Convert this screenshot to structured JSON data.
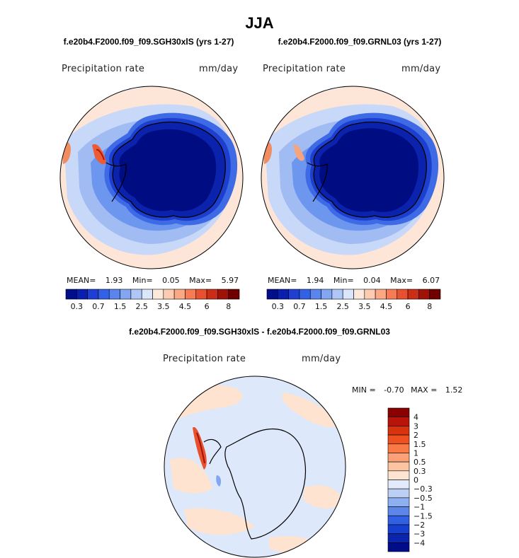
{
  "season": "JJA",
  "panels": [
    {
      "case": "f.e20b4.F2000.f09_f09.SGH30xlS (yrs 1-27)",
      "variable": "Precipitation rate",
      "units": "mm/day",
      "stats": {
        "mean_label": "MEAN=",
        "mean": "1.93",
        "min_label": "Min=",
        "min": "0.05",
        "max_label": "Max=",
        "max": "5.97"
      }
    },
    {
      "case": "f.e20b4.F2000.f09_f09.GRNL03 (yrs 1-27)",
      "variable": "Precipitation rate",
      "units": "mm/day",
      "stats": {
        "mean_label": "MEAN=",
        "mean": "1.94",
        "min_label": "Min=",
        "min": "0.04",
        "max_label": "Max=",
        "max": "6.07"
      }
    }
  ],
  "colorbar": {
    "tick_labels": [
      "0.3",
      "0.7",
      "1.5",
      "2.5",
      "3.5",
      "4.5",
      "6",
      "8"
    ],
    "colors": [
      "#000e8c",
      "#0a1fb0",
      "#1f3ed2",
      "#3361e6",
      "#5a85ee",
      "#83a6f2",
      "#aec7f6",
      "#dae6fb",
      "#fde8dc",
      "#fdcbb2",
      "#fba883",
      "#f57c55",
      "#e9502e",
      "#cc2d15",
      "#a01208",
      "#700000"
    ]
  },
  "difference": {
    "title": "f.e20b4.F2000.f09_f09.SGH30xlS - f.e20b4.F2000.f09_f09.GRNL03",
    "variable": "Precipitation rate",
    "units": "mm/day",
    "stats": {
      "min_label": "MIN =",
      "min": "-0.70",
      "max_label": "MAX =",
      "max": "1.52"
    },
    "colorbar": {
      "tick_labels": [
        "4",
        "3",
        "2",
        "1.5",
        "1",
        "0.5",
        "0.3",
        "0",
        "−0.3",
        "−0.5",
        "−1",
        "−1.5",
        "−2",
        "−3",
        "−4"
      ],
      "colors": [
        "#8b0000",
        "#b8140a",
        "#d9320f",
        "#ef5020",
        "#fa7a45",
        "#fca077",
        "#fdc4a2",
        "#fde3d0",
        "#e3ebfa",
        "#bcd0f5",
        "#8eb0f0",
        "#5c86ea",
        "#3160e2",
        "#163ecf",
        "#0a24ad",
        "#000c88"
      ]
    }
  },
  "colors": {
    "ocean_light": "#aec9f4",
    "ocean_mid": "#d6e3fb",
    "land_dark": "#000d85",
    "coast": "#000000",
    "diff_ocean": "#dde8fa",
    "diff_pos": "#fde3d0"
  }
}
